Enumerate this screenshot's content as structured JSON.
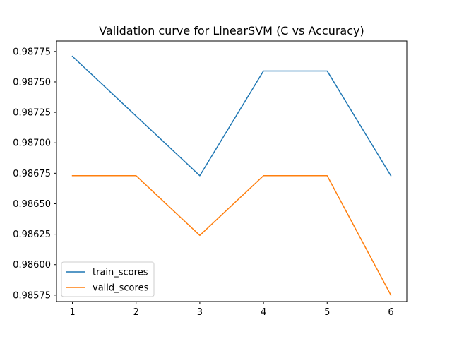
{
  "chart_data": {
    "type": "line",
    "title": "Validation curve for LinearSVM (C vs Accuracy)",
    "xlabel": "",
    "ylabel": "",
    "x": [
      1,
      2,
      3,
      4,
      5,
      6
    ],
    "xlim": [
      0.75,
      6.25
    ],
    "ylim": [
      0.985697,
      0.987836
    ],
    "xticks": [
      "1",
      "2",
      "3",
      "4",
      "5",
      "6"
    ],
    "yticks": [
      "0.98575",
      "0.98600",
      "0.98625",
      "0.98650",
      "0.98675",
      "0.98700",
      "0.98725",
      "0.98750",
      "0.98775"
    ],
    "grid": false,
    "legend_position": "lower-left",
    "series": [
      {
        "name": "train_scores",
        "color": "#1f77b4",
        "values": [
          0.98771,
          0.98722,
          0.98673,
          0.98759,
          0.98759,
          0.98673
        ]
      },
      {
        "name": "valid_scores",
        "color": "#ff7f0e",
        "values": [
          0.98673,
          0.98673,
          0.98624,
          0.98673,
          0.98673,
          0.98575
        ]
      }
    ]
  }
}
